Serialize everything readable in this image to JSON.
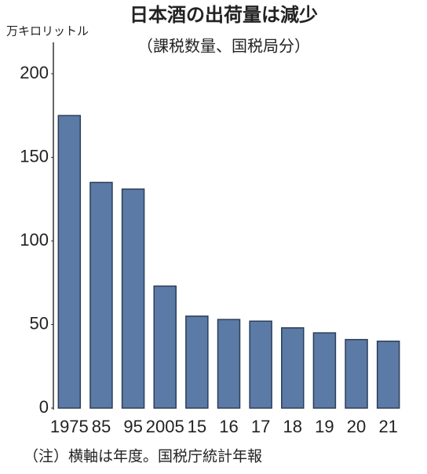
{
  "chart_data": {
    "type": "bar",
    "title": "日本酒の出荷量は減少",
    "subtitle": "（課税数量、国税局分）",
    "ylabel": "万キロリットル",
    "note": "（注）横軸は年度。国税庁統計年報",
    "categories": [
      "1975",
      "85",
      "95",
      "2005",
      "15",
      "16",
      "17",
      "18",
      "19",
      "20",
      "21"
    ],
    "values": [
      175,
      135,
      131,
      73,
      55,
      53,
      52,
      48,
      45,
      41,
      40
    ],
    "color": "#5b7aa5",
    "ylim": [
      0,
      200
    ],
    "yticks": [
      0,
      50,
      100,
      150,
      200
    ],
    "grid": false
  }
}
